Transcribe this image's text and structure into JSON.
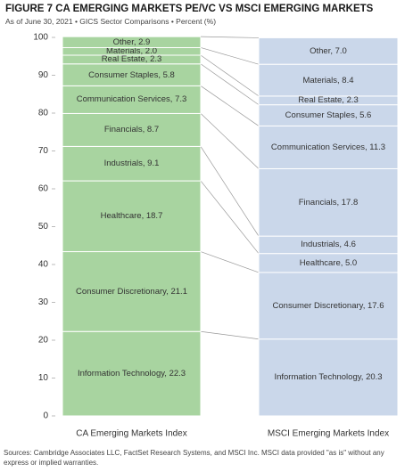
{
  "chart_data": {
    "type": "stacked-bar",
    "title": "FIGURE 7  CA EMERGING MARKETS PE/VC VS MSCI EMERGING MARKETS",
    "subtitle": "As of June 30, 2021 • GICS Sector Comparisons • Percent (%)",
    "source": "Sources: Cambridge Associates LLC, FactSet Research Systems, and MSCI Inc. MSCI data provided \"as is\" without any express or implied warranties.",
    "categories": [
      "CA Emerging Markets Index",
      "MSCI Emerging Markets Index"
    ],
    "colors": [
      "#a8d4a0",
      "#cad7ea"
    ],
    "ylim": [
      0,
      100
    ],
    "yticks": [
      0,
      10,
      20,
      30,
      40,
      50,
      60,
      70,
      80,
      90,
      100
    ],
    "series": [
      {
        "values": [
          22.3,
          20.3
        ],
        "value_labels": [
          "Information Technology, 22.3",
          "Information Technology, 20.3"
        ]
      },
      {
        "values": [
          21.1,
          17.6
        ],
        "value_labels": [
          "Consumer Discretionary, 21.1",
          "Consumer Discretionary, 17.6"
        ]
      },
      {
        "values": [
          18.7,
          5.0
        ],
        "value_labels": [
          "Healthcare, 18.7",
          "Healthcare, 5.0"
        ]
      },
      {
        "values": [
          9.1,
          4.6
        ],
        "value_labels": [
          "Industrials, 9.1",
          "Industrials, 4.6"
        ]
      },
      {
        "values": [
          8.7,
          17.8
        ],
        "value_labels": [
          "Financials, 8.7",
          "Financials, 17.8"
        ]
      },
      {
        "values": [
          7.3,
          11.3
        ],
        "value_labels": [
          "Communication Services, 7.3",
          "Communication Services, 11.3"
        ]
      },
      {
        "values": [
          5.8,
          5.6
        ],
        "value_labels": [
          "Consumer Staples, 5.8",
          "Consumer Staples, 5.6"
        ]
      },
      {
        "values": [
          2.3,
          2.3
        ],
        "value_labels": [
          "Real Estate, 2.3",
          "Real Estate, 2.3"
        ]
      },
      {
        "values": [
          2.0,
          8.4
        ],
        "value_labels": [
          "Materials, 2.0",
          "Materials, 8.4"
        ]
      },
      {
        "values": [
          2.9,
          7.0
        ],
        "value_labels": [
          "Other, 2.9",
          "Other, 7.0"
        ]
      }
    ]
  }
}
